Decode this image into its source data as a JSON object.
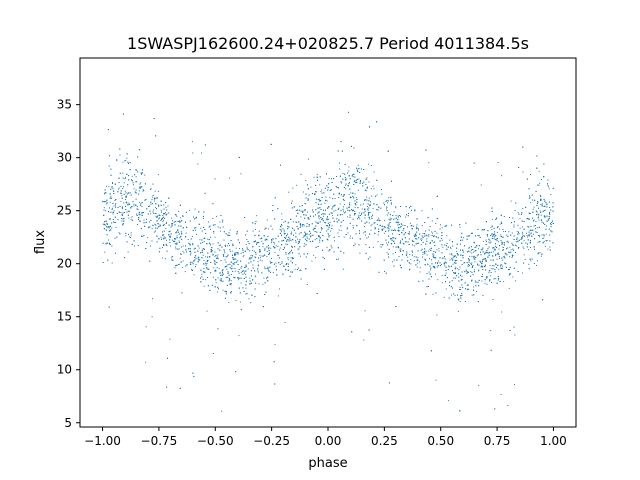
{
  "chart_data": {
    "type": "scatter",
    "title": "1SWASPJ162600.24+020825.7 Period 4011384.5s",
    "xlabel": "phase",
    "ylabel": "flux",
    "xlim": [
      -1.1,
      1.1
    ],
    "ylim": [
      4.6,
      39.4
    ],
    "xticks": [
      -1.0,
      -0.75,
      -0.5,
      -0.25,
      0.0,
      0.25,
      0.5,
      0.75,
      1.0
    ],
    "xtick_labels": [
      "−1.00",
      "−0.75",
      "−0.50",
      "−0.25",
      "0.00",
      "0.25",
      "0.50",
      "0.75",
      "1.00"
    ],
    "yticks": [
      5,
      10,
      15,
      20,
      25,
      30,
      35
    ],
    "ytick_labels": [
      "5",
      "10",
      "15",
      "20",
      "25",
      "30",
      "35"
    ],
    "grid": false,
    "color": "#1f77b4",
    "series": [
      {
        "x": [
          -1.0,
          -0.95,
          -0.9,
          -0.85,
          -0.8,
          -0.75,
          -0.7,
          -0.65,
          -0.6,
          -0.55,
          -0.5,
          -0.45,
          -0.4,
          -0.35,
          -0.3,
          -0.25,
          -0.2,
          -0.15,
          -0.1,
          -0.05,
          0.0,
          0.05,
          0.1,
          0.15,
          0.2,
          0.25,
          0.3,
          0.35,
          0.4,
          0.45,
          0.5,
          0.55,
          0.6,
          0.65,
          0.7,
          0.75,
          0.8,
          0.85,
          0.9,
          0.95,
          1.0
        ],
        "y": [
          24.0,
          25.5,
          26.2,
          26.0,
          25.0,
          24.0,
          23.0,
          22.3,
          21.8,
          21.3,
          20.8,
          20.2,
          19.8,
          19.9,
          20.6,
          21.3,
          21.8,
          22.6,
          23.6,
          24.6,
          24.0,
          25.5,
          26.2,
          26.0,
          25.0,
          24.0,
          23.0,
          22.3,
          21.8,
          21.3,
          20.8,
          20.2,
          19.8,
          19.9,
          20.6,
          21.3,
          21.8,
          22.6,
          23.6,
          24.6,
          24.0
        ],
        "spread": [
          3.2,
          3.6,
          3.8,
          3.4,
          3.0,
          2.8,
          2.6,
          2.6,
          2.6,
          2.8,
          3.0,
          3.0,
          2.8,
          2.8,
          2.8,
          2.8,
          3.0,
          3.4,
          3.8,
          3.6,
          3.2,
          3.6,
          3.8,
          3.4,
          3.0,
          2.8,
          2.6,
          2.6,
          2.6,
          2.8,
          3.0,
          3.0,
          2.8,
          2.8,
          2.8,
          2.8,
          3.0,
          3.4,
          3.8,
          3.6,
          3.2
        ]
      }
    ]
  }
}
